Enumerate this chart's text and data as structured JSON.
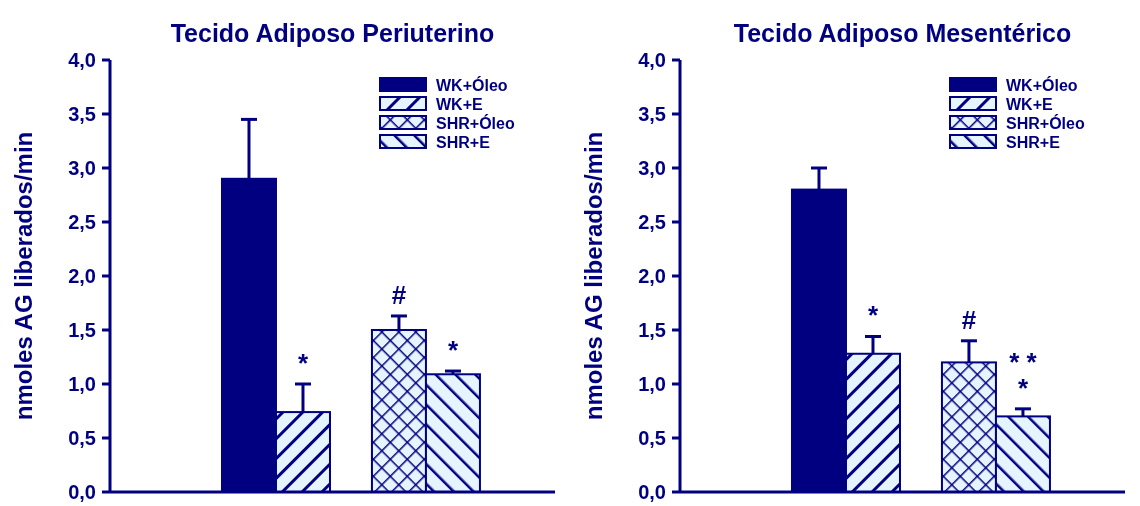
{
  "chart_data": [
    {
      "type": "bar",
      "title": "Tecido Adiposo Periuterino",
      "ylabel": "nmoles AG liberados/min",
      "categories": [
        null,
        null
      ],
      "ylim": [
        0,
        4
      ],
      "yticks": [
        {
          "value": 0,
          "label": "0,0"
        },
        {
          "value": 0.5,
          "label": "0,5"
        },
        {
          "value": 1,
          "label": "1,0"
        },
        {
          "value": 1.5,
          "label": "1,5"
        },
        {
          "value": 2,
          "label": "2,0"
        },
        {
          "value": 2.5,
          "label": "2,5"
        },
        {
          "value": 3,
          "label": "3,0"
        },
        {
          "value": 3.5,
          "label": "3,5"
        },
        {
          "value": 4,
          "label": "4,0"
        }
      ],
      "tick_labels": "y",
      "legend": "top right",
      "grid": false,
      "series": [
        {
          "name": "WK+Óleo",
          "color": "#000080",
          "values": [
            2.9,
            null
          ],
          "errors": [
            0.55,
            null
          ]
        },
        {
          "name": "WK+E",
          "color": "#000080",
          "values": [
            0.74,
            null
          ],
          "errors": [
            0.26,
            null
          ],
          "value_labels": [
            "*",
            null
          ]
        },
        {
          "name": "SHR+Óleo",
          "color": "#000080",
          "values": [
            null,
            1.5
          ],
          "errors": [
            null,
            0.13
          ],
          "value_labels": [
            null,
            "#"
          ]
        },
        {
          "name": "SHR+E",
          "color": "#000080",
          "values": [
            null,
            1.09
          ],
          "errors": [
            null,
            0.03
          ],
          "value_labels": [
            null,
            "*"
          ]
        }
      ]
    },
    {
      "type": "bar",
      "title": "Tecido Adiposo Mesentérico",
      "ylabel": "nmoles AG liberados/min",
      "categories": [
        null,
        null
      ],
      "ylim": [
        0,
        4
      ],
      "yticks": [
        {
          "value": 0,
          "label": "0,0"
        },
        {
          "value": 0.5,
          "label": "0,5"
        },
        {
          "value": 1,
          "label": "1,0"
        },
        {
          "value": 1.5,
          "label": "1,5"
        },
        {
          "value": 2,
          "label": "2,0"
        },
        {
          "value": 2.5,
          "label": "2,5"
        },
        {
          "value": 3,
          "label": "3,0"
        },
        {
          "value": 3.5,
          "label": "3,5"
        },
        {
          "value": 4,
          "label": "4,0"
        }
      ],
      "tick_labels": "y",
      "legend": "top right",
      "grid": false,
      "series": [
        {
          "name": "WK+Óleo",
          "color": "#000080",
          "values": [
            2.8,
            null
          ],
          "errors": [
            0.2,
            null
          ]
        },
        {
          "name": "WK+E",
          "color": "#000080",
          "values": [
            1.28,
            null
          ],
          "errors": [
            0.16,
            null
          ],
          "value_labels": [
            "*",
            null
          ]
        },
        {
          "name": "SHR+Óleo",
          "color": "#000080",
          "values": [
            null,
            1.2
          ],
          "errors": [
            null,
            0.2
          ],
          "value_labels": [
            null,
            "#"
          ]
        },
        {
          "name": "SHR+E",
          "color": "#000080",
          "values": [
            null,
            0.7
          ],
          "errors": [
            null,
            0.07
          ],
          "value_labels": [
            null,
            "* *\n*"
          ]
        }
      ]
    }
  ]
}
